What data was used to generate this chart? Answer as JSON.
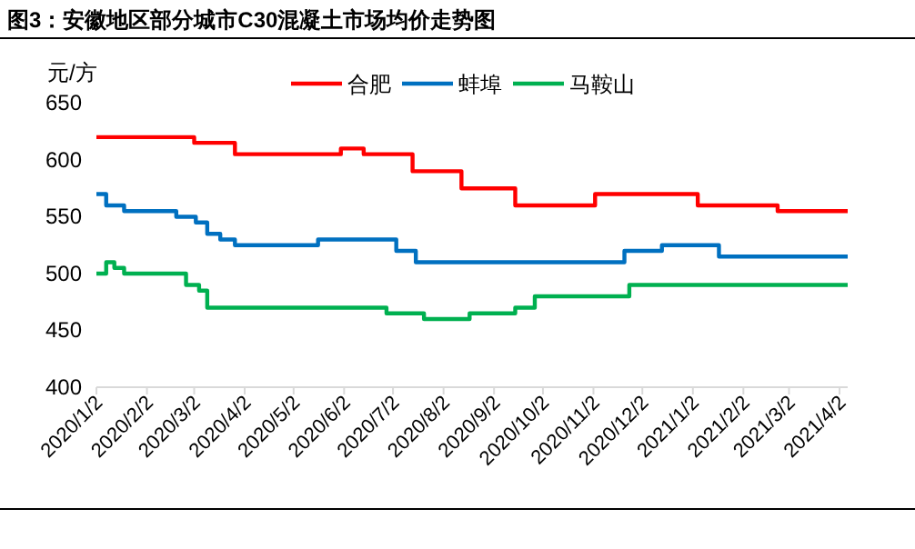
{
  "chart_data": {
    "type": "step",
    "title": "图3：安徽地区部分城市C30混凝土市场均价走势图",
    "ylabel": "元/方",
    "legend": "top",
    "grid": false,
    "marker": "none",
    "line_style": "solid",
    "xlim": [
      "2020-01-02",
      "2021-04-07"
    ],
    "xticks": [
      {
        "value": "2020-01-02",
        "label": "2020/1/2"
      },
      {
        "value": "2020-02-02",
        "label": "2020/2/2"
      },
      {
        "value": "2020-03-02",
        "label": "2020/3/2"
      },
      {
        "value": "2020-04-02",
        "label": "2020/4/2"
      },
      {
        "value": "2020-05-02",
        "label": "2020/5/2"
      },
      {
        "value": "2020-06-02",
        "label": "2020/6/2"
      },
      {
        "value": "2020-07-02",
        "label": "2020/7/2"
      },
      {
        "value": "2020-08-02",
        "label": "2020/8/2"
      },
      {
        "value": "2020-09-02",
        "label": "2020/9/2"
      },
      {
        "value": "2020-10-02",
        "label": "2020/10/2"
      },
      {
        "value": "2020-11-02",
        "label": "2020/11/2"
      },
      {
        "value": "2020-12-02",
        "label": "2020/12/2"
      },
      {
        "value": "2021-01-02",
        "label": "2021/1/2"
      },
      {
        "value": "2021-02-02",
        "label": "2021/2/2"
      },
      {
        "value": "2021-03-02",
        "label": "2021/3/2"
      },
      {
        "value": "2021-04-02",
        "label": "2021/4/2"
      }
    ],
    "ylim": [
      400,
      650
    ],
    "yticks": [
      400,
      450,
      500,
      550,
      600,
      650
    ],
    "series": [
      {
        "name": "合肥",
        "color": "#ff0000",
        "x": [
          "2020-01-02",
          "2020-03-02",
          "2020-03-27",
          "2020-05-31",
          "2020-06-14",
          "2020-07-14",
          "2020-08-13",
          "2020-09-15",
          "2020-11-03",
          "2021-01-05",
          "2021-02-23",
          "2021-04-07"
        ],
        "values": [
          620,
          615,
          605,
          610,
          605,
          590,
          575,
          560,
          570,
          560,
          555,
          555
        ]
      },
      {
        "name": "蚌埠",
        "color": "#0070c0",
        "x": [
          "2020-01-02",
          "2020-01-08",
          "2020-01-19",
          "2020-02-20",
          "2020-03-03",
          "2020-03-10",
          "2020-03-18",
          "2020-03-27",
          "2020-05-17",
          "2020-07-04",
          "2020-07-16",
          "2020-11-21",
          "2020-12-14",
          "2021-01-18",
          "2021-04-07"
        ],
        "values": [
          570,
          560,
          555,
          550,
          545,
          535,
          530,
          525,
          530,
          520,
          510,
          520,
          525,
          515,
          515
        ]
      },
      {
        "name": "马鞍山",
        "color": "#00b050",
        "x": [
          "2020-01-02",
          "2020-01-08",
          "2020-01-13",
          "2020-01-19",
          "2020-02-26",
          "2020-03-05",
          "2020-03-10",
          "2020-06-28",
          "2020-07-21",
          "2020-08-18",
          "2020-09-15",
          "2020-09-27",
          "2020-11-24",
          "2021-04-07"
        ],
        "values": [
          500,
          510,
          505,
          500,
          490,
          485,
          470,
          465,
          460,
          465,
          470,
          480,
          490,
          490
        ]
      }
    ]
  }
}
